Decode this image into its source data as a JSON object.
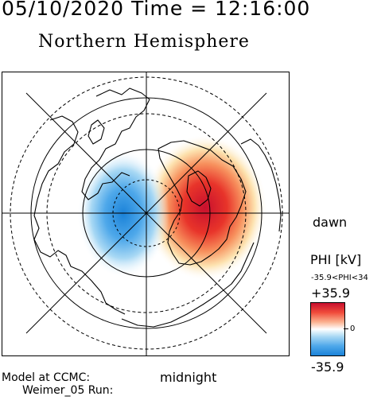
{
  "header": {
    "datetime": "05/10/2020 Time = 12:16:00",
    "title": "Northern Hemisphere"
  },
  "map": {
    "projection": "polar stereographic, north pole centered",
    "labels": {
      "dawn": "dawn",
      "midnight": "midnight"
    },
    "features": [
      "continent outlines",
      "latitude circles (dashed)",
      "meridian grid lines",
      "dawn-dusk / noon-midnight axes"
    ],
    "potential_pattern": {
      "negative_cell": "dusk/pre-midnight side (blue)",
      "positive_cell": "dawn side (red)"
    }
  },
  "colorbar": {
    "label": "PHI [kV]",
    "range_text": "-35.9<PHI<34",
    "max_label": "+35.9",
    "min_label": "-35.9",
    "zero_label": "0",
    "max_color": "#c8102e",
    "mid_color": "#ffffff",
    "min_color": "#1b82d8"
  },
  "footer": {
    "model_line1": "Model at CCMC:",
    "model_line2": "Weimer_05 Run:"
  }
}
